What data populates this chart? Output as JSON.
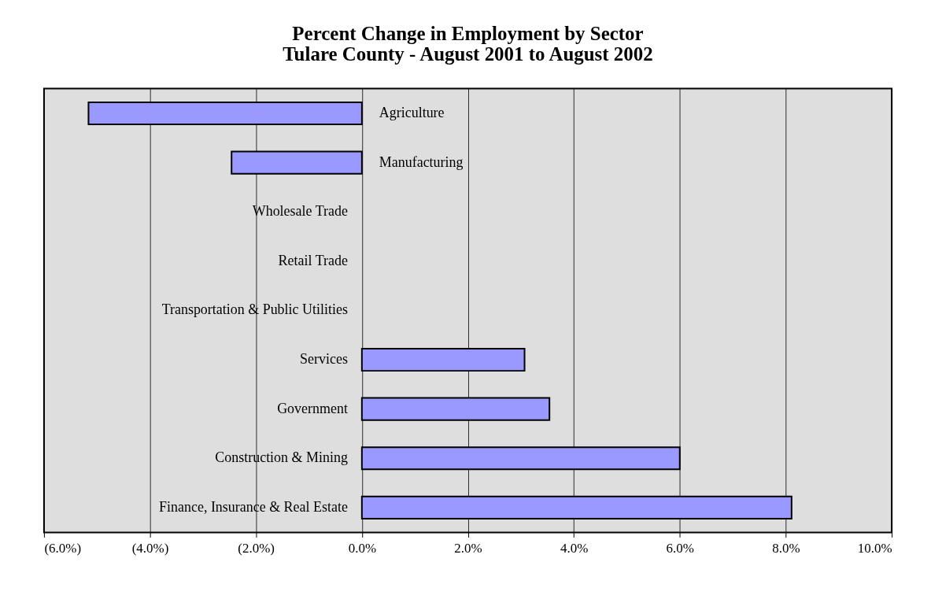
{
  "chart_data": {
    "type": "bar",
    "orientation": "horizontal",
    "title": [
      "Percent Change in Employment by Sector",
      "Tulare County - August 2001 to August 2002"
    ],
    "categories": [
      "Agriculture",
      "Manufacturing",
      "Wholesale Trade",
      "Retail Trade",
      "Transportation & Public Utilities",
      "Services",
      "Government",
      "Construction & Mining",
      "Finance, Insurance & Real Estate"
    ],
    "values": [
      -5.16,
      -2.46,
      0,
      0,
      0,
      3.07,
      3.54,
      6.0,
      8.11
    ],
    "color": "#9999ff",
    "xlim": [
      -6,
      10
    ],
    "xticks": [
      {
        "value": -6,
        "label": "(6.0%)"
      },
      {
        "value": -4,
        "label": "(4.0%)"
      },
      {
        "value": -2,
        "label": "(2.0%)"
      },
      {
        "value": 0,
        "label": "0.0%"
      },
      {
        "value": 2,
        "label": "2.0%"
      },
      {
        "value": 4,
        "label": "4.0%"
      },
      {
        "value": 6,
        "label": "6.0%"
      },
      {
        "value": 8,
        "label": "8.0%"
      },
      {
        "value": 10,
        "label": "10.0%"
      }
    ],
    "grid": "x"
  }
}
